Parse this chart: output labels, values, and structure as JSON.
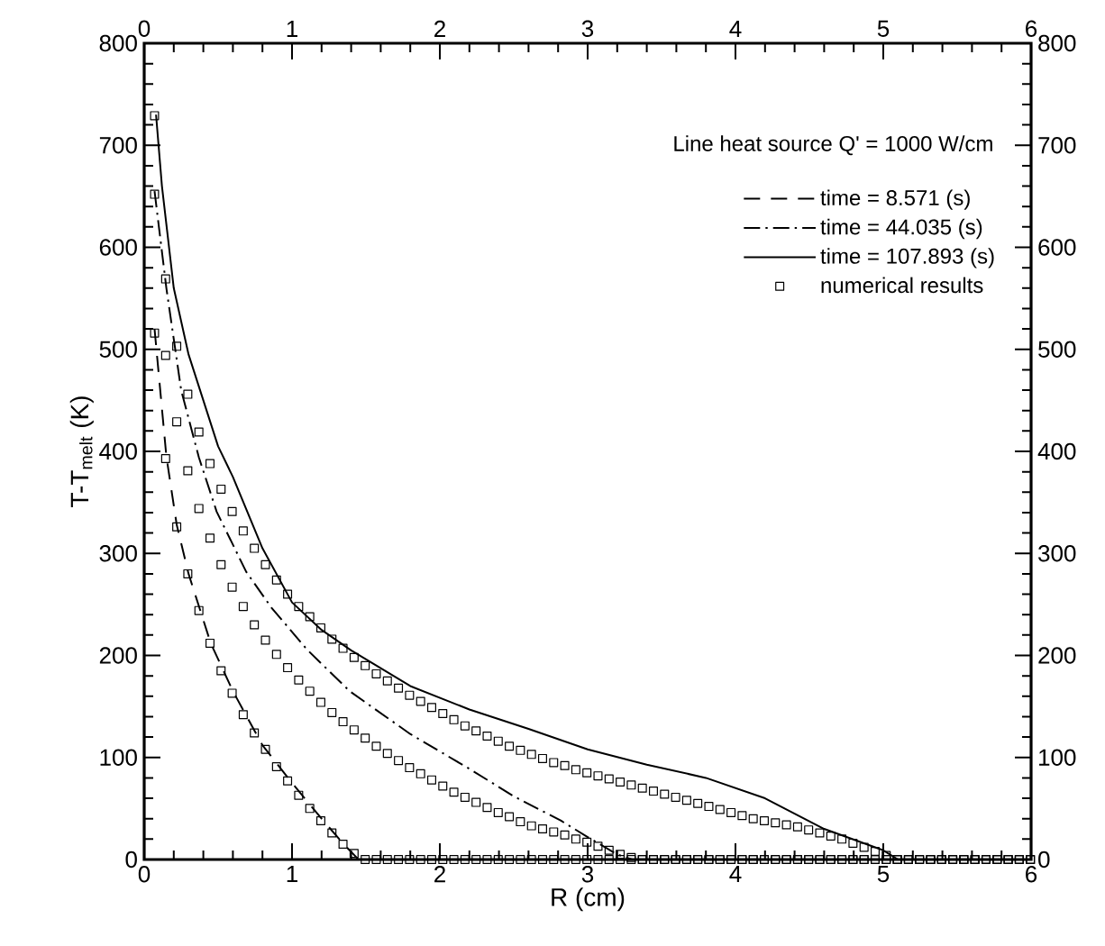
{
  "chart_data": {
    "type": "line",
    "xlabel": "R (cm)",
    "ylabel": "T-T$_{melt}$ (K)",
    "annotations": [
      "Line heat source Q' = 1000 W/cm"
    ],
    "xlim": [
      0,
      6
    ],
    "xticks": [
      0,
      1,
      2,
      3,
      4,
      5,
      6
    ],
    "ylim": [
      0,
      800
    ],
    "yticks": [
      0,
      100,
      200,
      300,
      400,
      500,
      600,
      700,
      800
    ],
    "x2lim": [
      0,
      6
    ],
    "x2ticks": [
      0,
      1,
      2,
      3,
      4,
      5,
      6
    ],
    "y2lim": [
      0,
      800
    ],
    "y2ticks": [
      0,
      100,
      200,
      300,
      400,
      500,
      600,
      700,
      800
    ],
    "legend": "top right",
    "series": [
      {
        "name": "time = 8.571 (s)",
        "color": "#000000",
        "line_style": "dashed",
        "x": [
          0.07,
          0.15,
          0.22,
          0.3,
          0.45,
          0.6,
          0.8,
          1.0,
          1.2,
          1.35,
          1.45,
          6
        ],
        "values": [
          520,
          395,
          328,
          280,
          212,
          165,
          112,
          75,
          40,
          15,
          0,
          0
        ]
      },
      {
        "name": "time = 44.035 (s)",
        "color": "#000000",
        "line_style": "dashdot",
        "x": [
          0.07,
          0.15,
          0.25,
          0.37,
          0.49,
          0.69,
          0.86,
          1.1,
          1.39,
          1.8,
          2.21,
          2.5,
          2.82,
          3.0,
          3.2,
          3.3,
          6
        ],
        "values": [
          655,
          560,
          460,
          394,
          341,
          282,
          247,
          206,
          165,
          123,
          88,
          62,
          38,
          22,
          5,
          0,
          0
        ]
      },
      {
        "name": "time = 107.893 (s)",
        "color": "#000000",
        "line_style": "solid",
        "x": [
          0.08,
          0.12,
          0.2,
          0.3,
          0.4,
          0.5,
          0.6,
          0.8,
          1.0,
          1.2,
          1.4,
          1.8,
          2.2,
          2.6,
          3.0,
          3.4,
          3.8,
          4.2,
          4.6,
          5.0,
          5.1,
          6
        ],
        "values": [
          730,
          660,
          560,
          495,
          450,
          405,
          375,
          305,
          252,
          225,
          205,
          170,
          147,
          128,
          108,
          93,
          80,
          60,
          30,
          9,
          0,
          0
        ]
      },
      {
        "name": "numerical results",
        "type": "scatter",
        "color": "#000000",
        "marker": "square",
        "x": [
          0.07,
          0.145,
          0.22,
          0.295,
          0.37,
          0.445,
          0.52,
          0.595,
          0.67,
          0.745,
          0.82,
          0.895,
          0.97,
          1.045,
          1.12,
          1.195,
          1.27,
          1.345,
          1.42,
          1.495,
          1.57,
          1.645,
          1.72,
          1.795,
          1.87,
          1.945,
          2.02,
          2.095,
          2.17,
          2.245,
          2.32,
          2.395,
          2.47,
          2.545,
          2.62,
          2.695,
          2.77,
          2.845,
          2.92,
          2.995,
          3.07,
          3.145,
          3.22,
          3.295,
          3.37,
          3.445,
          3.52,
          3.595,
          3.67,
          3.745,
          3.82,
          3.895,
          3.97,
          4.045,
          4.12,
          4.195,
          4.27,
          4.345,
          4.42,
          4.495,
          4.57,
          4.645,
          4.72,
          4.795,
          4.87,
          4.945,
          5.02,
          5.095,
          5.17,
          5.245,
          5.32,
          5.395,
          5.47,
          5.545,
          5.62,
          5.695,
          5.77,
          5.845,
          5.92,
          5.995,
          0.07,
          0.145,
          0.22,
          0.295,
          0.37,
          0.445,
          0.52,
          0.595,
          0.67,
          0.745,
          0.82,
          0.895,
          0.97,
          1.045,
          1.12,
          1.195,
          1.27,
          1.345,
          1.42,
          1.495,
          1.57,
          1.645,
          1.72,
          1.795,
          1.87,
          1.945,
          2.02,
          2.095,
          2.17,
          2.245,
          2.32,
          2.395,
          2.47,
          2.545,
          2.62,
          2.695,
          2.77,
          2.845,
          2.92,
          2.995,
          3.07,
          3.145,
          3.22,
          3.295,
          3.37,
          3.445,
          3.52,
          3.595,
          3.67,
          3.745,
          3.82,
          3.895,
          3.97,
          4.045,
          4.12,
          4.195,
          4.27,
          4.345,
          4.42,
          4.495,
          4.57,
          4.645,
          4.72,
          4.795,
          4.87,
          4.945,
          5.02,
          5.095,
          5.17,
          5.245,
          5.32,
          5.395,
          5.47,
          5.545,
          5.62,
          5.695,
          5.77,
          5.845,
          5.92,
          5.995,
          0.07,
          0.145,
          0.22,
          0.295,
          0.37,
          0.445,
          0.52,
          0.595,
          0.67,
          0.745,
          0.82,
          0.895,
          0.97,
          1.045,
          1.12,
          1.195,
          1.27,
          1.345,
          1.42,
          1.495,
          1.57,
          1.645,
          1.72,
          1.795,
          1.87,
          1.945,
          2.02,
          2.095,
          2.17,
          2.245,
          2.32,
          2.395,
          2.47,
          2.545,
          2.62,
          2.695,
          2.77,
          2.845,
          2.92,
          2.995,
          3.07,
          3.145,
          3.22,
          3.295,
          3.37,
          3.445,
          3.52,
          3.595,
          3.67,
          3.745,
          3.82,
          3.895,
          3.97,
          4.045,
          4.12,
          4.195,
          4.27,
          4.345,
          4.42,
          4.495,
          4.57,
          4.645,
          4.72,
          4.795,
          4.87,
          4.945,
          5.02,
          5.095,
          5.17,
          5.245,
          5.32,
          5.395,
          5.47,
          5.545,
          5.62,
          5.695,
          5.77,
          5.845,
          5.92,
          5.995
        ],
        "values": [
          516,
          393,
          326,
          280,
          244,
          212,
          185,
          163,
          142,
          124,
          108,
          91,
          77,
          63,
          50,
          38,
          26,
          15,
          6,
          0,
          0,
          0,
          0,
          0,
          0,
          0,
          0,
          0,
          0,
          0,
          0,
          0,
          0,
          0,
          0,
          0,
          0,
          0,
          0,
          0,
          0,
          0,
          0,
          0,
          0,
          0,
          0,
          0,
          0,
          0,
          0,
          0,
          0,
          0,
          0,
          0,
          0,
          0,
          0,
          0,
          0,
          0,
          0,
          0,
          0,
          0,
          0,
          0,
          0,
          0,
          0,
          0,
          0,
          0,
          0,
          0,
          0,
          0,
          0,
          0,
          652,
          494,
          429,
          381,
          344,
          315,
          289,
          267,
          248,
          230,
          215,
          201,
          188,
          176,
          165,
          154,
          144,
          135,
          127,
          119,
          111,
          104,
          97,
          90,
          84,
          78,
          72,
          66,
          61,
          56,
          51,
          46,
          42,
          37,
          33,
          30,
          27,
          24,
          20,
          17,
          13,
          9,
          5,
          2,
          0,
          0,
          0,
          0,
          0,
          0,
          0,
          0,
          0,
          0,
          0,
          0,
          0,
          0,
          0,
          0,
          0,
          0,
          0,
          0,
          0,
          0,
          0,
          0,
          0,
          0,
          0,
          0,
          0,
          0,
          0,
          0,
          0,
          0,
          0,
          0,
          729,
          569,
          503,
          456,
          419,
          388,
          363,
          341,
          322,
          305,
          289,
          274,
          260,
          248,
          238,
          227,
          216,
          207,
          198,
          190,
          182,
          175,
          168,
          161,
          155,
          149,
          143,
          137,
          131,
          126,
          121,
          116,
          111,
          107,
          103,
          99,
          95,
          92,
          88,
          85,
          82,
          79,
          76,
          73,
          70,
          67,
          64,
          61,
          58,
          55,
          52,
          49,
          46,
          43,
          40,
          38,
          36,
          34,
          32,
          29,
          26,
          23,
          20,
          16,
          12,
          8,
          4,
          0,
          0,
          0,
          0,
          0,
          0,
          0,
          0,
          0,
          0,
          0,
          0,
          0
        ]
      }
    ]
  }
}
